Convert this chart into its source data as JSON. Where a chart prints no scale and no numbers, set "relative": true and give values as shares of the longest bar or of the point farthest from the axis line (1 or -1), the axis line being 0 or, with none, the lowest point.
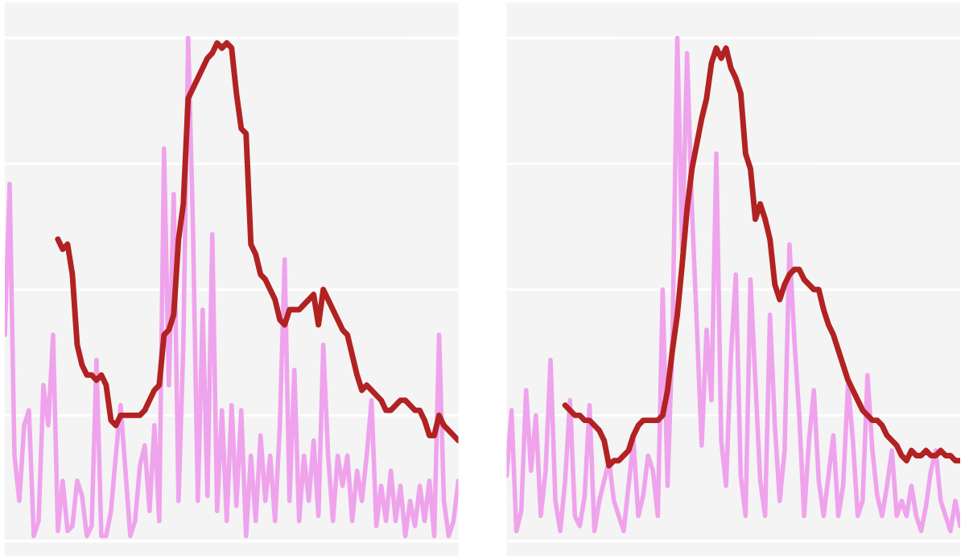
{
  "chart_data": [
    {
      "type": "line",
      "relative": true,
      "grid": "y",
      "categories": [
        null,
        null,
        null,
        null,
        null,
        null,
        null,
        null,
        null,
        null,
        null,
        null,
        null,
        null,
        null,
        null,
        null,
        null,
        null,
        null,
        null,
        null,
        null,
        null,
        null,
        null,
        null,
        null,
        null,
        null,
        null,
        null,
        null,
        null,
        null,
        null,
        null,
        null,
        null,
        null,
        null,
        null,
        null,
        null,
        null,
        null,
        null,
        null,
        null,
        null,
        null,
        null,
        null,
        null,
        null,
        null,
        null,
        null,
        null,
        null,
        null,
        null,
        null,
        null,
        null,
        null,
        null,
        null,
        null,
        null,
        null,
        null,
        null,
        null,
        null,
        null,
        null,
        null,
        null,
        null,
        null,
        null,
        null,
        null,
        null,
        null,
        null,
        null,
        null,
        null,
        null,
        null,
        null,
        null,
        null
      ],
      "series": [
        {
          "color": "#efa3ec",
          "values": [
            0.41,
            0.71,
            0.17,
            0.08,
            0.23,
            0.26,
            0.01,
            0.04,
            0.31,
            0.23,
            0.41,
            0.02,
            0.12,
            0.02,
            0.03,
            0.12,
            0.09,
            0.01,
            0.03,
            0.36,
            0.01,
            0.01,
            0.06,
            0.17,
            0.27,
            0.14,
            0.01,
            0.04,
            0.15,
            0.19,
            0.06,
            0.23,
            0.04,
            0.78,
            0.31,
            0.69,
            0.08,
            0.39,
            1.0,
            0.62,
            0.08,
            0.46,
            0.09,
            0.61,
            0.06,
            0.26,
            0.04,
            0.27,
            0.07,
            0.26,
            0.01,
            0.17,
            0.04,
            0.21,
            0.08,
            0.17,
            0.04,
            0.23,
            0.56,
            0.08,
            0.34,
            0.04,
            0.17,
            0.08,
            0.2,
            0.05,
            0.39,
            0.17,
            0.04,
            0.17,
            0.11,
            0.17,
            0.04,
            0.14,
            0.08,
            0.17,
            0.28,
            0.03,
            0.11,
            0.04,
            0.14,
            0.04,
            0.11,
            0.01,
            0.08,
            0.03,
            0.11,
            0.04,
            0.12,
            0.01,
            0.41,
            0.08,
            0.01,
            0.04,
            0.12
          ]
        },
        {
          "color": "#b22222",
          "values": [
            null,
            null,
            null,
            null,
            null,
            null,
            null,
            null,
            null,
            null,
            null,
            0.6,
            0.58,
            0.59,
            0.53,
            0.39,
            0.35,
            0.33,
            0.33,
            0.32,
            0.33,
            0.31,
            0.24,
            0.23,
            0.25,
            0.25,
            0.25,
            0.25,
            0.25,
            0.26,
            0.28,
            0.3,
            0.31,
            0.41,
            0.42,
            0.45,
            0.6,
            0.67,
            0.88,
            0.9,
            0.92,
            0.94,
            0.96,
            0.97,
            0.99,
            0.98,
            0.99,
            0.98,
            0.89,
            0.82,
            0.81,
            0.59,
            0.57,
            0.53,
            0.52,
            0.5,
            0.48,
            0.44,
            0.43,
            0.46,
            0.46,
            0.46,
            0.47,
            0.48,
            0.49,
            0.43,
            0.5,
            0.48,
            0.46,
            0.44,
            0.42,
            0.41,
            0.37,
            0.33,
            0.3,
            0.31,
            0.3,
            0.29,
            0.28,
            0.26,
            0.26,
            0.27,
            0.28,
            0.28,
            0.27,
            0.26,
            0.26,
            0.24,
            0.21,
            0.21,
            0.25,
            0.23,
            0.22,
            0.21,
            0.2
          ]
        }
      ]
    },
    {
      "type": "line",
      "relative": true,
      "grid": "y",
      "categories": [
        null,
        null,
        null,
        null,
        null,
        null,
        null,
        null,
        null,
        null,
        null,
        null,
        null,
        null,
        null,
        null,
        null,
        null,
        null,
        null,
        null,
        null,
        null,
        null,
        null,
        null,
        null,
        null,
        null,
        null,
        null,
        null,
        null,
        null,
        null,
        null,
        null,
        null,
        null,
        null,
        null,
        null,
        null,
        null,
        null,
        null,
        null,
        null,
        null,
        null,
        null,
        null,
        null,
        null,
        null,
        null,
        null,
        null,
        null,
        null,
        null,
        null,
        null,
        null,
        null,
        null,
        null,
        null,
        null,
        null,
        null,
        null,
        null,
        null,
        null,
        null,
        null,
        null,
        null,
        null,
        null,
        null,
        null,
        null,
        null,
        null,
        null,
        null,
        null,
        null,
        null,
        null,
        null,
        null
      ],
      "series": [
        {
          "color": "#efa3ec",
          "values": [
            0.13,
            0.26,
            0.02,
            0.06,
            0.3,
            0.14,
            0.25,
            0.05,
            0.14,
            0.36,
            0.08,
            0.02,
            0.12,
            0.28,
            0.05,
            0.03,
            0.09,
            0.27,
            0.02,
            0.08,
            0.12,
            0.16,
            0.08,
            0.05,
            0.02,
            0.11,
            0.2,
            0.05,
            0.09,
            0.17,
            0.14,
            0.05,
            0.5,
            0.11,
            0.4,
            1.0,
            0.58,
            0.97,
            0.66,
            0.43,
            0.19,
            0.42,
            0.28,
            0.77,
            0.2,
            0.11,
            0.37,
            0.53,
            0.13,
            0.05,
            0.52,
            0.32,
            0.12,
            0.05,
            0.45,
            0.23,
            0.08,
            0.18,
            0.59,
            0.4,
            0.25,
            0.05,
            0.2,
            0.3,
            0.12,
            0.05,
            0.13,
            0.21,
            0.05,
            0.11,
            0.31,
            0.2,
            0.05,
            0.08,
            0.33,
            0.18,
            0.09,
            0.05,
            0.11,
            0.18,
            0.05,
            0.08,
            0.05,
            0.11,
            0.05,
            0.02,
            0.07,
            0.14,
            0.18,
            0.08,
            0.05,
            0.02,
            0.08,
            0.03
          ]
        },
        {
          "color": "#b22222",
          "values": [
            null,
            null,
            null,
            null,
            null,
            null,
            null,
            null,
            null,
            null,
            null,
            null,
            0.27,
            0.26,
            0.25,
            0.25,
            0.24,
            0.24,
            0.23,
            0.22,
            0.2,
            0.15,
            0.16,
            0.16,
            0.17,
            0.18,
            0.21,
            0.23,
            0.24,
            0.24,
            0.24,
            0.24,
            0.25,
            0.3,
            0.38,
            0.45,
            0.55,
            0.66,
            0.74,
            0.79,
            0.84,
            0.88,
            0.95,
            0.98,
            0.96,
            0.98,
            0.94,
            0.92,
            0.89,
            0.77,
            0.74,
            0.64,
            0.67,
            0.64,
            0.6,
            0.51,
            0.48,
            0.51,
            0.53,
            0.54,
            0.54,
            0.52,
            0.51,
            0.5,
            0.5,
            0.46,
            0.43,
            0.41,
            0.38,
            0.35,
            0.32,
            0.3,
            0.28,
            0.26,
            0.25,
            0.24,
            0.24,
            0.23,
            0.21,
            0.2,
            0.19,
            0.17,
            0.16,
            0.18,
            0.17,
            0.17,
            0.18,
            0.17,
            0.17,
            0.18,
            0.17,
            0.17,
            0.16,
            0.16
          ]
        }
      ]
    }
  ]
}
